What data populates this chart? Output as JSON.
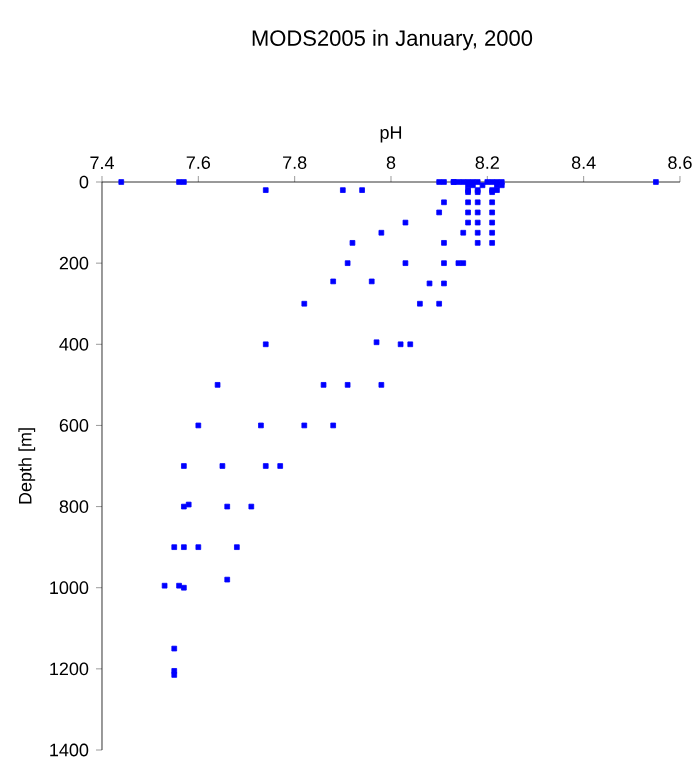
{
  "chart_data": {
    "type": "scatter",
    "title": "MODS2005 in January, 2000",
    "xlabel": "pH",
    "ylabel": "Depth [m]",
    "x": [
      7.44,
      7.56,
      7.57,
      8.1,
      8.11,
      8.13,
      8.13,
      8.14,
      8.15,
      8.16,
      8.17,
      8.18,
      8.2,
      8.21,
      8.22,
      8.23,
      8.55,
      8.16,
      8.17,
      8.19,
      8.22,
      8.23,
      7.74,
      7.9,
      7.94,
      8.16,
      8.18,
      8.21,
      8.22,
      8.16,
      8.18,
      8.21,
      8.11,
      8.16,
      8.18,
      8.21,
      8.1,
      8.16,
      8.18,
      8.21,
      8.03,
      8.16,
      8.18,
      8.21,
      7.98,
      8.15,
      8.18,
      8.21,
      7.92,
      8.11,
      8.18,
      8.21,
      7.91,
      8.03,
      8.11,
      8.14,
      8.15,
      7.88,
      7.96,
      8.08,
      8.11,
      7.82,
      8.06,
      8.1,
      7.74,
      7.97,
      8.02,
      8.04,
      7.64,
      7.86,
      7.91,
      7.98,
      7.6,
      7.73,
      7.82,
      7.88,
      7.57,
      7.65,
      7.74,
      7.77,
      7.57,
      7.58,
      7.66,
      7.71,
      7.55,
      7.57,
      7.6,
      7.68,
      7.53,
      7.56,
      7.57,
      7.66,
      7.55,
      7.55,
      7.55
    ],
    "values": [
      0,
      0,
      0,
      0,
      0,
      0,
      0,
      0,
      0,
      0,
      0,
      0,
      0,
      0,
      0,
      0,
      0,
      8,
      8,
      8,
      8,
      8,
      20,
      20,
      20,
      20,
      20,
      20,
      20,
      25,
      25,
      25,
      50,
      50,
      50,
      50,
      75,
      75,
      75,
      75,
      100,
      100,
      100,
      100,
      125,
      125,
      125,
      125,
      150,
      150,
      150,
      150,
      200,
      200,
      200,
      200,
      200,
      245,
      245,
      250,
      250,
      300,
      300,
      300,
      400,
      395,
      400,
      400,
      500,
      500,
      500,
      500,
      600,
      600,
      600,
      600,
      700,
      700,
      700,
      700,
      800,
      795,
      800,
      800,
      900,
      900,
      900,
      900,
      995,
      995,
      1000,
      980,
      1150,
      1205,
      1215
    ],
    "color": "#0000ff",
    "marker": "square",
    "xlim": [
      7.4,
      8.6
    ],
    "xticks": [
      7.4,
      7.6,
      7.8,
      8,
      8.2,
      8.4,
      8.6
    ],
    "ylim": [
      1400,
      0
    ],
    "yticks": [
      0,
      200,
      400,
      600,
      800,
      1000,
      1200,
      1400
    ]
  }
}
